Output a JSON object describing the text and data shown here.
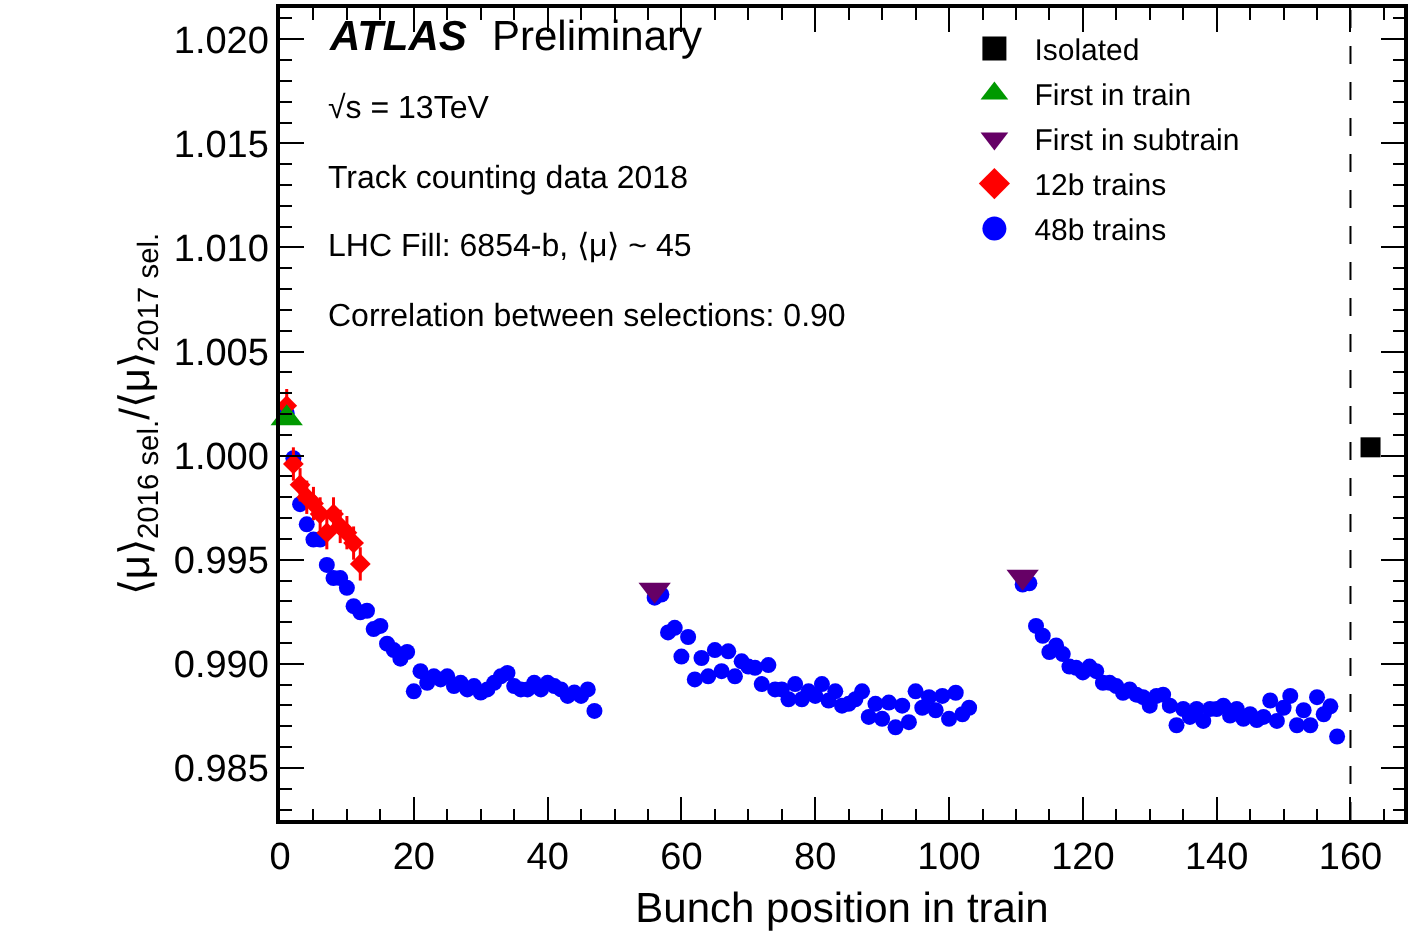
{
  "chart_data": {
    "type": "scatter",
    "xlabel": "Bunch position in train",
    "ylabel": "⟨μ⟩$_{2016 sel.}$/⟨μ⟩$_{2017 sel.}$",
    "annotations": [
      "ATLAS",
      "Preliminary",
      "√s = 13TeV",
      "Track counting data 2018",
      "LHC Fill: 6854-b, ⟨μ⟩ ~ 45",
      "Correlation between selections: 0.90"
    ],
    "xlim": [
      0,
      168
    ],
    "xticks": [
      0,
      20,
      40,
      60,
      80,
      100,
      120,
      140,
      160
    ],
    "ylim": [
      0.9825,
      1.0215
    ],
    "yticks": [
      {
        "value": 0.985,
        "label": "0.985"
      },
      {
        "value": 0.99,
        "label": "0.990"
      },
      {
        "value": 0.995,
        "label": "0.995"
      },
      {
        "value": 1.0,
        "label": "1.000"
      },
      {
        "value": 1.005,
        "label": "1.005"
      },
      {
        "value": 1.01,
        "label": "1.010"
      },
      {
        "value": 1.015,
        "label": "1.015"
      },
      {
        "value": 1.02,
        "label": "1.020"
      }
    ],
    "legend": "top right",
    "ref_lines": [
      {
        "axis": "x",
        "value": 160,
        "line_style": "dashed",
        "color": "#000000"
      }
    ],
    "series": [
      {
        "name": "Isolated",
        "color": "#000000",
        "marker": "square",
        "x": [
          163
        ],
        "values": [
          1.0004
        ]
      },
      {
        "name": "First in train",
        "color": "#009900",
        "marker": "triangle",
        "x": [
          1
        ],
        "values": [
          1.0018
        ]
      },
      {
        "name": "First in subtrain",
        "color": "#660066",
        "marker": "triangle-down",
        "x": [
          56,
          111
        ],
        "values": [
          0.99356,
          0.99418
        ]
      },
      {
        "name": "12b trains",
        "color": "#ff0000",
        "marker": "diamond",
        "x": [
          1,
          2,
          3,
          4,
          5,
          6,
          7,
          8,
          9,
          10,
          11,
          12
        ],
        "values": [
          1.0024,
          0.9996,
          0.9986,
          0.998,
          0.9977,
          0.9972,
          0.9963,
          0.9972,
          0.9966,
          0.9963,
          0.9958,
          0.9948
        ],
        "errors": [
          0.0008,
          0.0008,
          0.0008,
          0.0008,
          0.0008,
          0.0008,
          0.0008,
          0.0008,
          0.0008,
          0.0008,
          0.0008,
          0.0008
        ]
      },
      {
        "name": "48b trains",
        "color": "#0000ff",
        "marker": "circle",
        "x": [
          1,
          2,
          3,
          4,
          5,
          6,
          7,
          8,
          9,
          10,
          11,
          12,
          13,
          14,
          15,
          16,
          17,
          18,
          19,
          20,
          21,
          22,
          23,
          24,
          25,
          26,
          27,
          28,
          29,
          30,
          31,
          32,
          33,
          34,
          35,
          36,
          37,
          38,
          39,
          40,
          41,
          42,
          43,
          44,
          45,
          46,
          47,
          56,
          57,
          58,
          59,
          60,
          61,
          62,
          63,
          64,
          65,
          66,
          67,
          68,
          69,
          70,
          71,
          72,
          73,
          74,
          75,
          76,
          77,
          78,
          79,
          80,
          81,
          82,
          83,
          84,
          85,
          86,
          87,
          88,
          89,
          90,
          91,
          92,
          93,
          94,
          95,
          96,
          97,
          98,
          99,
          100,
          101,
          102,
          103,
          111,
          112,
          113,
          114,
          115,
          116,
          117,
          118,
          119,
          120,
          121,
          122,
          123,
          124,
          125,
          126,
          127,
          128,
          129,
          130,
          131,
          132,
          133,
          134,
          135,
          136,
          137,
          138,
          139,
          140,
          141,
          142,
          143,
          144,
          145,
          146,
          147,
          148,
          149,
          150,
          151,
          152,
          153,
          154,
          155,
          156,
          157,
          158
        ],
        "values": [
          1.00204,
          0.99988,
          0.99767,
          0.9967,
          0.99597,
          0.99597,
          0.99475,
          0.99412,
          0.99412,
          0.99365,
          0.99277,
          0.99248,
          0.99255,
          0.99167,
          0.99182,
          0.99097,
          0.99066,
          0.99025,
          0.99057,
          0.98868,
          0.98965,
          0.98909,
          0.9894,
          0.98925,
          0.9894,
          0.98893,
          0.98909,
          0.98877,
          0.98893,
          0.98862,
          0.98877,
          0.98909,
          0.9894,
          0.98956,
          0.98893,
          0.98877,
          0.98877,
          0.98909,
          0.98877,
          0.98909,
          0.98893,
          0.98877,
          0.98846,
          0.98862,
          0.98846,
          0.98877,
          0.98774,
          0.99318,
          0.99333,
          0.99151,
          0.99173,
          0.99035,
          0.99129,
          0.98925,
          0.99028,
          0.9894,
          0.99066,
          0.98965,
          0.9906,
          0.9894,
          0.99012,
          0.98987,
          0.98981,
          0.98903,
          0.98994,
          0.98877,
          0.98877,
          0.9883,
          0.98903,
          0.9883,
          0.98868,
          0.98846,
          0.98903,
          0.98824,
          0.98868,
          0.98799,
          0.98808,
          0.9883,
          0.98868,
          0.98745,
          0.98808,
          0.98736,
          0.98814,
          0.98695,
          0.98799,
          0.9872,
          0.98868,
          0.98789,
          0.9884,
          0.98777,
          0.98846,
          0.98736,
          0.98861,
          0.98758,
          0.98789,
          0.99381,
          0.99387,
          0.99182,
          0.99135,
          0.99057,
          0.99088,
          0.99047,
          0.98987,
          0.98981,
          0.98959,
          0.98987,
          0.98965,
          0.98909,
          0.98909,
          0.98893,
          0.98861,
          0.98877,
          0.98852,
          0.9884,
          0.98799,
          0.98846,
          0.98852,
          0.98799,
          0.98705,
          0.98783,
          0.98745,
          0.98783,
          0.98726,
          0.98783,
          0.98783,
          0.98799,
          0.98752,
          0.98783,
          0.98736,
          0.98758,
          0.9873,
          0.98745,
          0.98824,
          0.98726,
          0.98789,
          0.98846,
          0.98705,
          0.98777,
          0.98705,
          0.9884,
          0.98758,
          0.98796,
          0.98651
        ]
      }
    ]
  }
}
